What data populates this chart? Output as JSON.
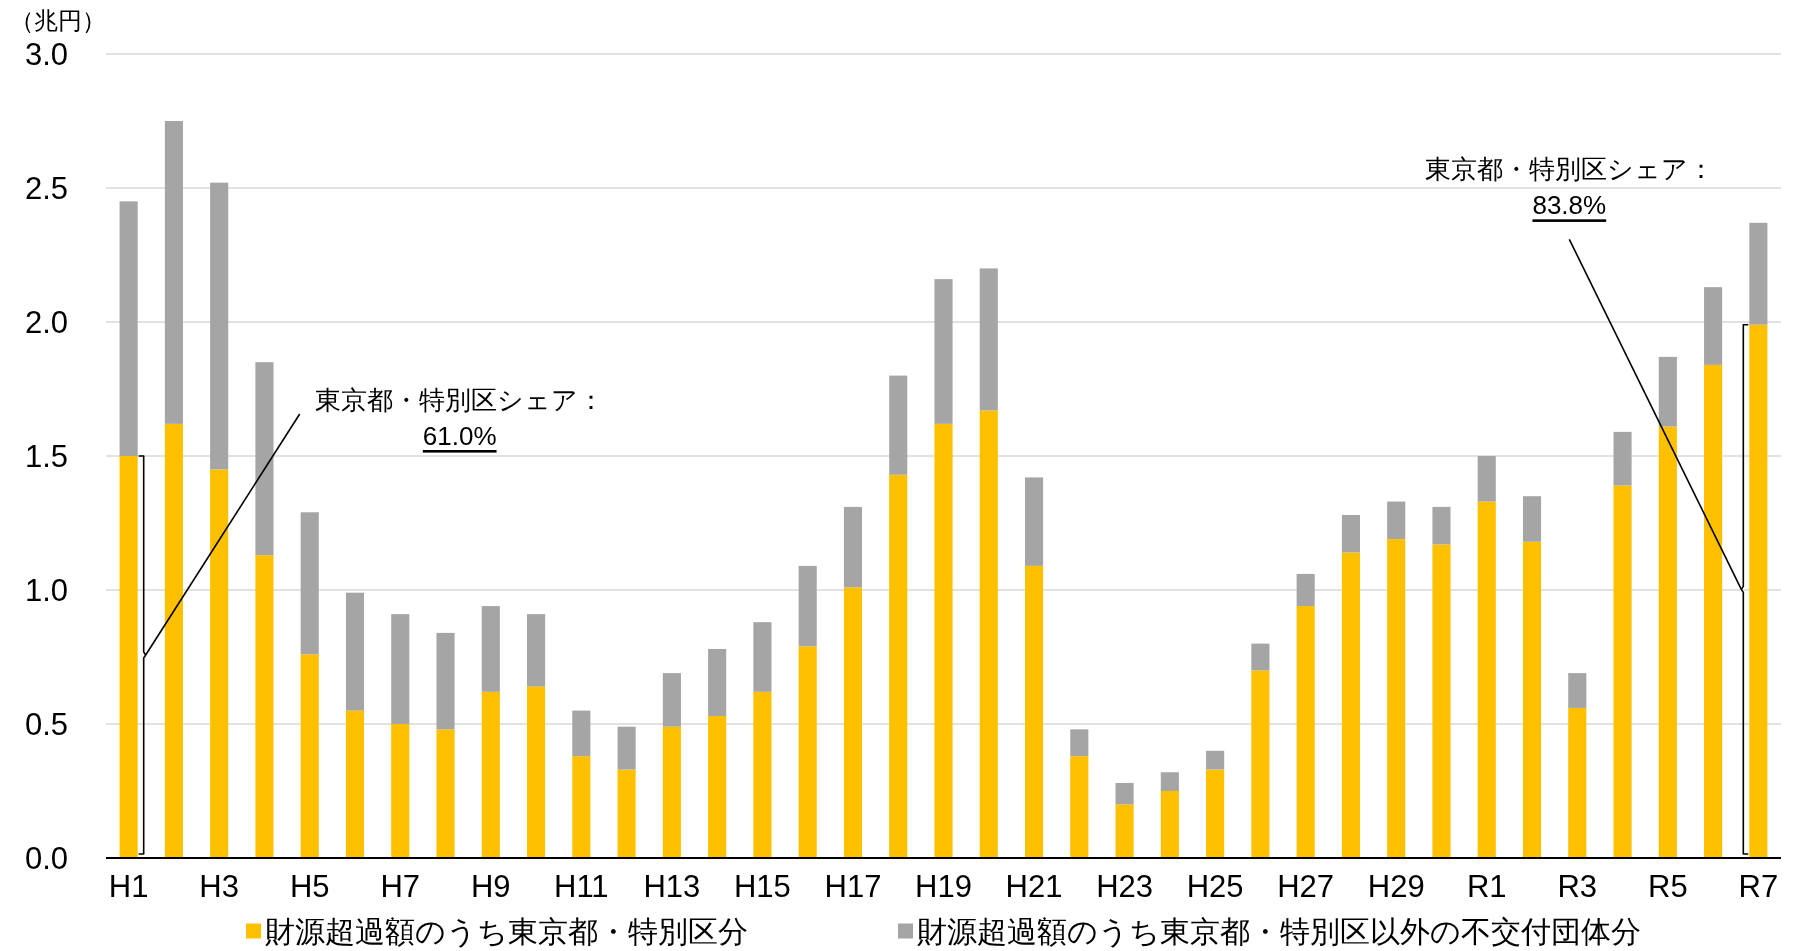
{
  "chart_data": {
    "type": "bar",
    "stacked": true,
    "ylabel": "（兆円）",
    "categories": [
      "H1",
      null,
      "H3",
      null,
      "H5",
      null,
      "H7",
      null,
      "H9",
      null,
      "H11",
      null,
      "H13",
      null,
      "H15",
      null,
      "H17",
      null,
      "H19",
      null,
      "H21",
      null,
      "H23",
      null,
      "H25",
      null,
      "H27",
      null,
      "H29",
      null,
      "R1",
      null,
      "R3",
      null,
      "R5",
      null,
      "R7"
    ],
    "series": [
      {
        "name": "財源超過額のうち東京都・特別区分",
        "color": "#ffc000",
        "values": [
          1.5,
          1.62,
          1.45,
          1.13,
          0.76,
          0.55,
          0.5,
          0.48,
          0.62,
          0.64,
          0.38,
          0.33,
          0.49,
          0.53,
          0.62,
          0.79,
          1.01,
          1.43,
          1.62,
          1.67,
          1.09,
          0.38,
          0.2,
          0.25,
          0.33,
          0.7,
          0.94,
          1.14,
          1.19,
          1.17,
          1.33,
          1.18,
          0.56,
          1.39,
          1.61,
          1.84,
          1.99
        ]
      },
      {
        "name": "財源超過額のうち東京都・特別区以外の不交付団体分",
        "color": "#a5a5a5",
        "values": [
          0.95,
          1.13,
          1.07,
          0.72,
          0.53,
          0.44,
          0.41,
          0.36,
          0.32,
          0.27,
          0.17,
          0.16,
          0.2,
          0.25,
          0.26,
          0.3,
          0.3,
          0.37,
          0.54,
          0.53,
          0.33,
          0.1,
          0.08,
          0.07,
          0.07,
          0.1,
          0.12,
          0.14,
          0.14,
          0.14,
          0.17,
          0.17,
          0.13,
          0.2,
          0.26,
          0.29,
          0.38
        ]
      }
    ],
    "ylim": [
      0,
      3
    ],
    "yticks": [
      {
        "value": 0,
        "label": "0.0"
      },
      0.5,
      {
        "value": 1,
        "label": "1.0"
      },
      1.5,
      {
        "value": 2,
        "label": "2.0"
      },
      2.5,
      {
        "value": 3,
        "label": "3.0"
      }
    ],
    "grid": "y",
    "legend": "bottom",
    "annotations": [
      "東京都・特別区シェア：\n61.0%",
      "東京都・特別区シェア：\n83.8%"
    ]
  }
}
